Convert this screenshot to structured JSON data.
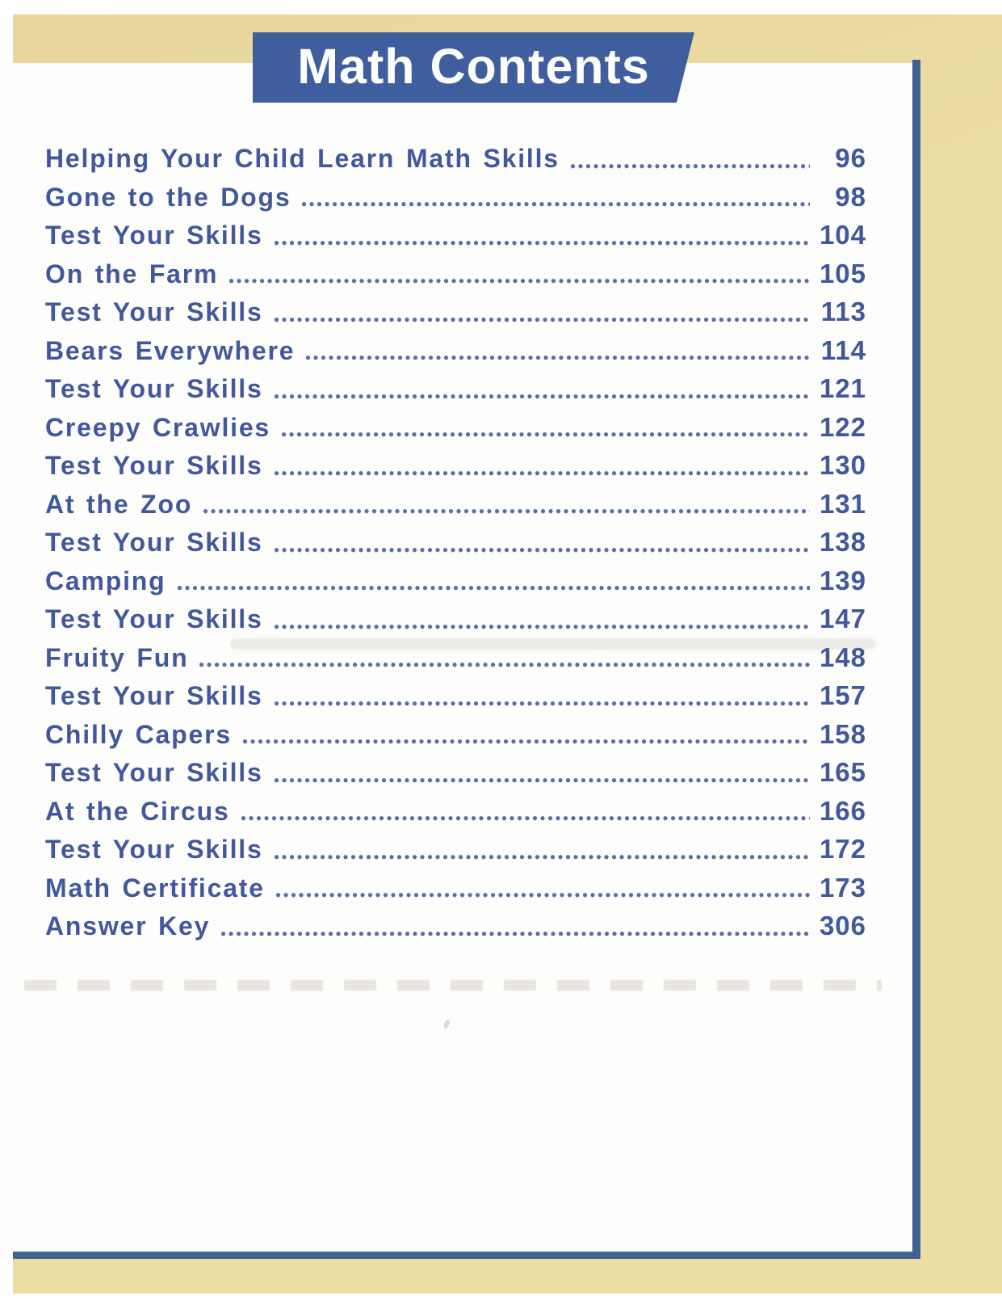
{
  "document": {
    "title": "Math Contents",
    "toc": [
      {
        "label": "Helping Your Child Learn Math Skills",
        "page": "96"
      },
      {
        "label": "Gone to the Dogs",
        "page": "98"
      },
      {
        "label": "Test Your Skills",
        "page": "104"
      },
      {
        "label": "On the Farm",
        "page": "105"
      },
      {
        "label": "Test Your Skills",
        "page": "113"
      },
      {
        "label": "Bears Everywhere",
        "page": "114"
      },
      {
        "label": "Test Your Skills",
        "page": "121"
      },
      {
        "label": "Creepy Crawlies",
        "page": "122"
      },
      {
        "label": "Test Your Skills",
        "page": "130"
      },
      {
        "label": "At the Zoo",
        "page": "131"
      },
      {
        "label": "Test Your Skills",
        "page": "138"
      },
      {
        "label": "Camping",
        "page": "139"
      },
      {
        "label": "Test Your Skills",
        "page": "147"
      },
      {
        "label": "Fruity Fun",
        "page": "148"
      },
      {
        "label": "Test Your Skills",
        "page": "157"
      },
      {
        "label": "Chilly Capers",
        "page": "158"
      },
      {
        "label": "Test Your Skills",
        "page": "165"
      },
      {
        "label": "At the Circus",
        "page": "166"
      },
      {
        "label": "Test Your Skills",
        "page": "172"
      },
      {
        "label": "Math Certificate",
        "page": "173"
      },
      {
        "label": "Answer Key",
        "page": "306"
      }
    ]
  },
  "colors": {
    "banner_blue": "#3e5e9e",
    "entry_blue": "#41589c",
    "border_blue": "#3f628e",
    "paper_tan": "#ecdda4",
    "paper_tan_dark": "#e7d59c",
    "page_white": "#fdfdfb"
  }
}
